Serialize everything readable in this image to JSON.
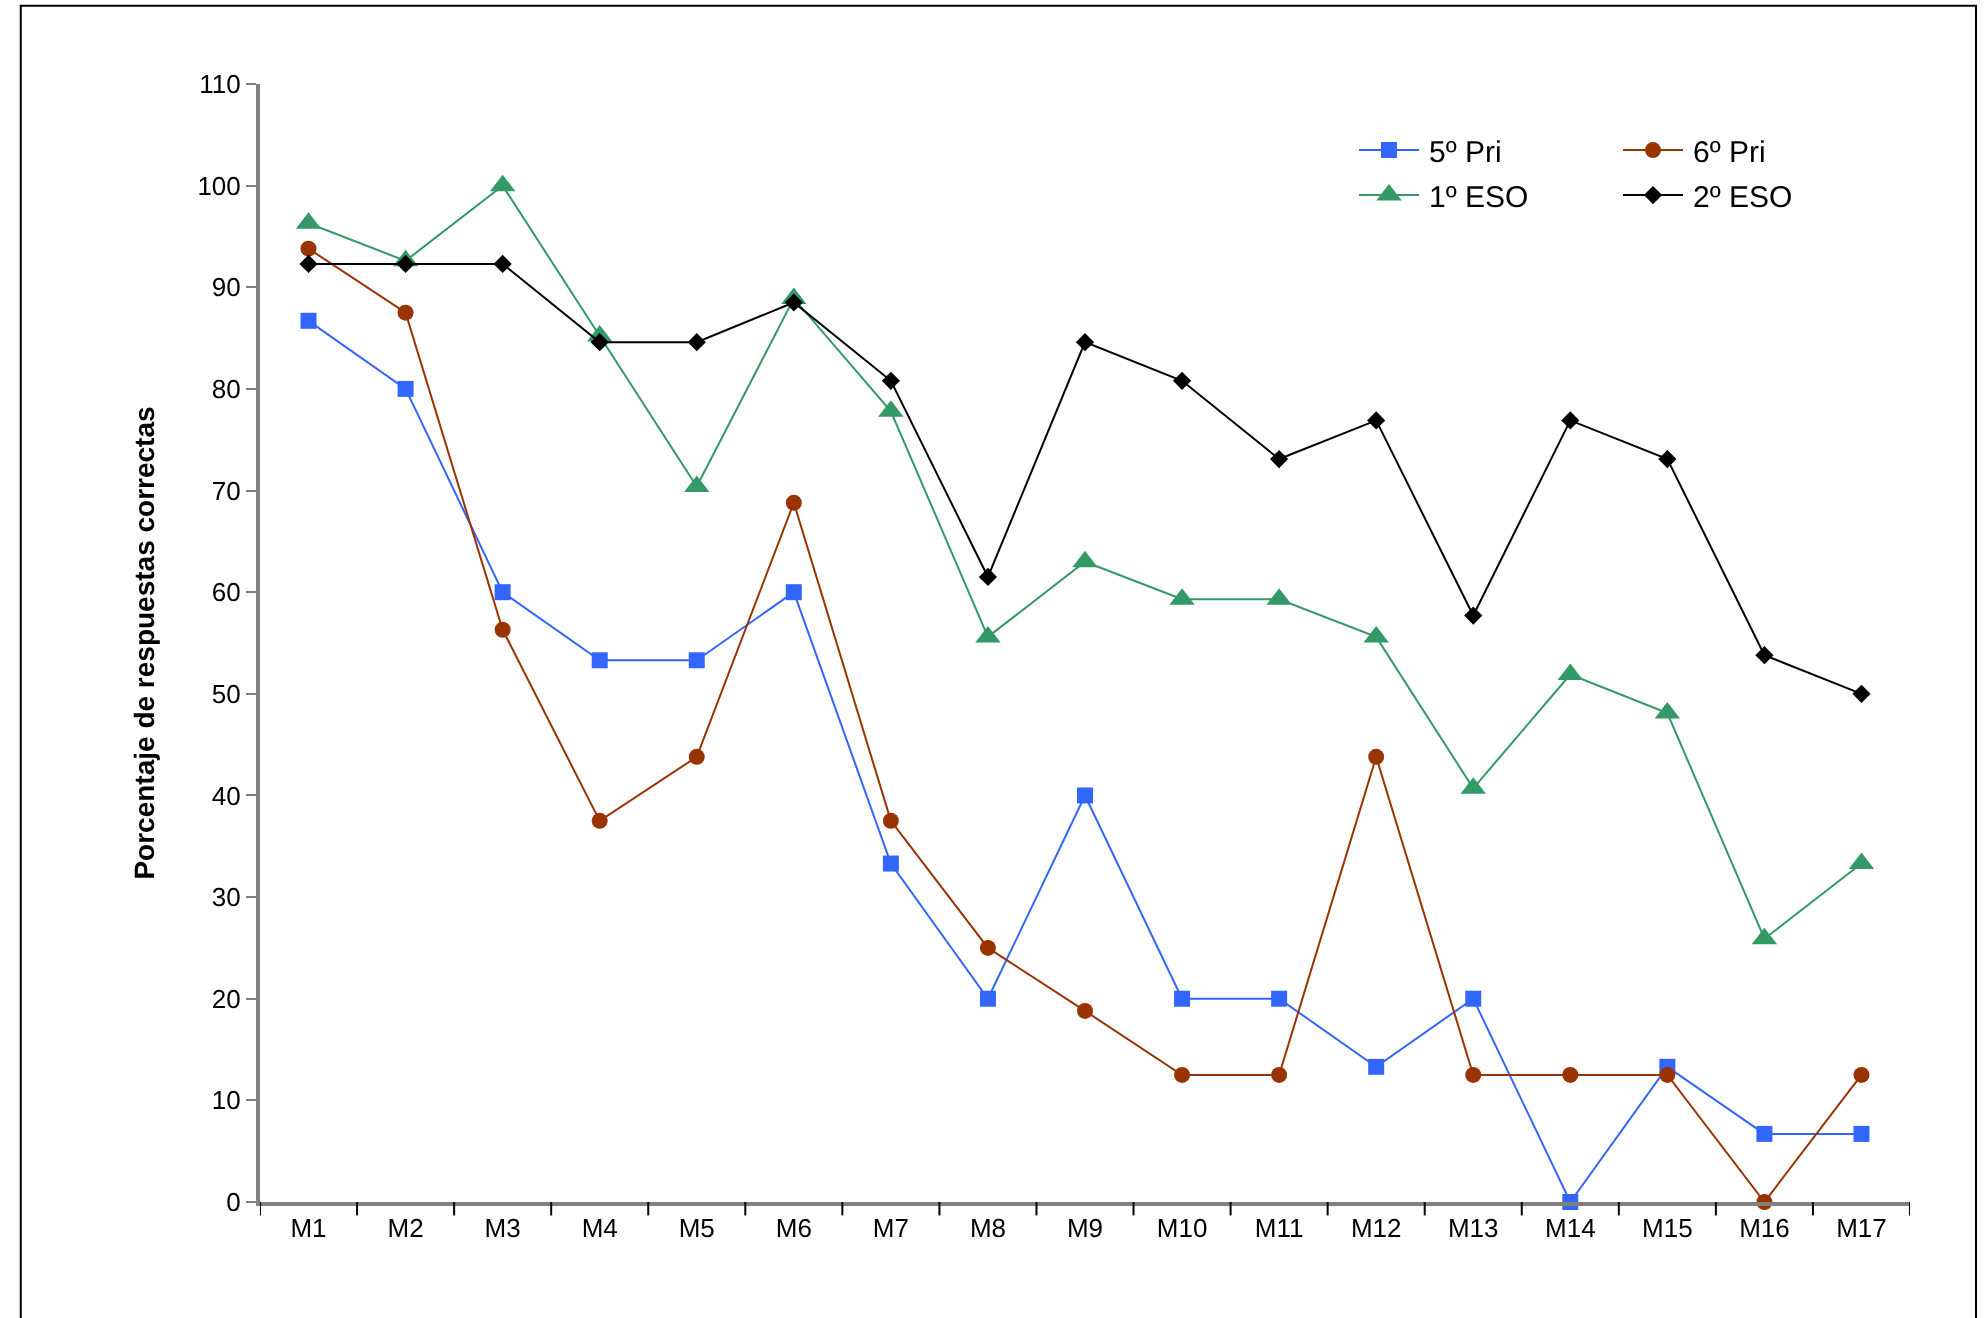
{
  "chart_data": {
    "type": "line",
    "ylabel": "Porcentaje de respuestas correctas",
    "categories": [
      "M1",
      "M2",
      "M3",
      "M4",
      "M5",
      "M6",
      "M7",
      "M8",
      "M9",
      "M10",
      "M11",
      "M12",
      "M13",
      "M14",
      "M15",
      "M16",
      "M17"
    ],
    "series": [
      {
        "name": "5º Pri",
        "color": "#3366ff",
        "marker": "square",
        "values": [
          86.7,
          80,
          60,
          53.3,
          53.3,
          60,
          33.3,
          20,
          40,
          20,
          20,
          13.3,
          20,
          0,
          13.3,
          6.7,
          6.7
        ]
      },
      {
        "name": "6º Pri",
        "color": "#993300",
        "marker": "circle",
        "values": [
          93.8,
          87.5,
          56.3,
          37.5,
          43.8,
          68.8,
          37.5,
          25,
          18.8,
          12.5,
          12.5,
          43.8,
          12.5,
          12.5,
          12.5,
          0,
          12.5
        ]
      },
      {
        "name": "1º ESO",
        "color": "#339966",
        "marker": "triangle",
        "values": [
          96.3,
          92.6,
          100,
          85.2,
          70.4,
          88.9,
          77.8,
          55.6,
          63,
          59.3,
          59.3,
          55.6,
          40.7,
          51.9,
          48.1,
          25.9,
          33.3
        ]
      },
      {
        "name": "2º ESO",
        "color": "#000000",
        "marker": "diamond",
        "values": [
          92.3,
          92.3,
          92.3,
          84.6,
          84.6,
          88.5,
          80.8,
          61.5,
          84.6,
          80.8,
          73.1,
          76.9,
          57.7,
          76.9,
          73.1,
          53.8,
          50
        ]
      }
    ],
    "ylim": [
      0,
      110
    ],
    "yticks": [
      0,
      10,
      20,
      30,
      40,
      50,
      60,
      70,
      80,
      90,
      100,
      110
    ],
    "legend": "top right",
    "line_style": "solid"
  }
}
